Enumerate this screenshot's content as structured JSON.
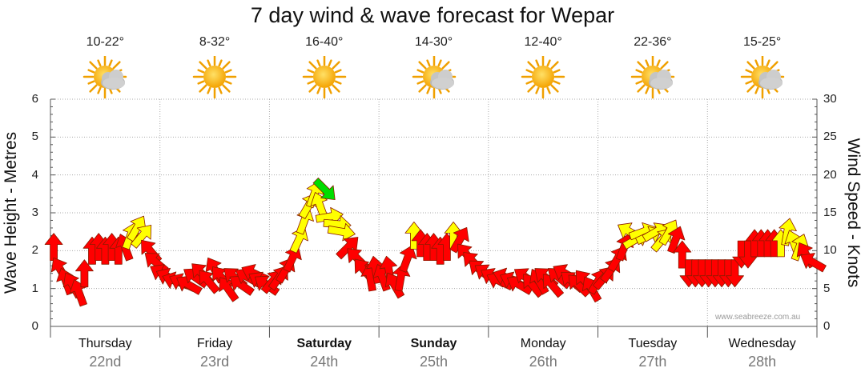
{
  "title": "7 day wind & wave forecast for Wepar",
  "watermark": "www.seabreeze.com.au",
  "days": [
    {
      "day": "Thursday",
      "date": "22nd",
      "temp": "10-22°",
      "weather": "partly-cloudy-icon",
      "bold": false
    },
    {
      "day": "Friday",
      "date": "23rd",
      "temp": "8-32°",
      "weather": "sunny-icon",
      "bold": false
    },
    {
      "day": "Saturday",
      "date": "24th",
      "temp": "16-40°",
      "weather": "sunny-icon",
      "bold": true
    },
    {
      "day": "Sunday",
      "date": "25th",
      "temp": "14-30°",
      "weather": "partly-cloudy-icon",
      "bold": true
    },
    {
      "day": "Monday",
      "date": "26th",
      "temp": "12-40°",
      "weather": "sunny-icon",
      "bold": false
    },
    {
      "day": "Tuesday",
      "date": "27th",
      "temp": "22-36°",
      "weather": "partly-cloudy-icon",
      "bold": false
    },
    {
      "day": "Wednesday",
      "date": "28th",
      "temp": "15-25°",
      "weather": "partly-cloudy-icon",
      "bold": false
    }
  ],
  "chart_data": {
    "type": "scatter",
    "title": "7 day wind & wave forecast for Wepar",
    "ylabel_left": "Wave Height - Metres",
    "ylabel_right": "Wind Speed - Knots",
    "y_left_range": [
      0,
      6
    ],
    "y_left_ticks": [
      "0",
      "1",
      "2",
      "3",
      "4",
      "5",
      "6"
    ],
    "y_right_range": [
      0,
      30
    ],
    "y_right_ticks": [
      "0",
      "5",
      "10",
      "15",
      "20",
      "25",
      "30"
    ],
    "x_range_days": [
      0,
      7
    ],
    "grid": true,
    "colors": {
      "light": "#ff0000",
      "moderate": "#ffff00",
      "strong": "#00dd00"
    },
    "series": [
      {
        "name": "Wind",
        "unit": "knots",
        "points": [
          {
            "day": 0.03,
            "knots": 10.5,
            "color": "light",
            "dir": 0
          },
          {
            "day": 0.09,
            "knots": 7.5,
            "color": "light",
            "dir": -30
          },
          {
            "day": 0.14,
            "knots": 6.0,
            "color": "light",
            "dir": -20
          },
          {
            "day": 0.2,
            "knots": 5.5,
            "color": "light",
            "dir": -30
          },
          {
            "day": 0.26,
            "knots": 4.5,
            "color": "light",
            "dir": -20
          },
          {
            "day": 0.31,
            "knots": 7.0,
            "color": "light",
            "dir": 0
          },
          {
            "day": 0.38,
            "knots": 10.0,
            "color": "light",
            "dir": 0
          },
          {
            "day": 0.44,
            "knots": 10.5,
            "color": "light",
            "dir": 0
          },
          {
            "day": 0.5,
            "knots": 10.0,
            "color": "light",
            "dir": 0
          },
          {
            "day": 0.56,
            "knots": 10.5,
            "color": "light",
            "dir": 0
          },
          {
            "day": 0.62,
            "knots": 10.0,
            "color": "light",
            "dir": 0
          },
          {
            "day": 0.68,
            "knots": 10.5,
            "color": "light",
            "dir": -20
          },
          {
            "day": 0.73,
            "knots": 12.0,
            "color": "moderate",
            "dir": 20
          },
          {
            "day": 0.79,
            "knots": 13.0,
            "color": "moderate",
            "dir": 30
          },
          {
            "day": 0.84,
            "knots": 12.0,
            "color": "moderate",
            "dir": 40
          },
          {
            "day": 0.91,
            "knots": 10.0,
            "color": "light",
            "dir": -40
          },
          {
            "day": 0.96,
            "knots": 8.5,
            "color": "light",
            "dir": -50
          },
          {
            "day": 1.02,
            "knots": 7.0,
            "color": "light",
            "dir": -60
          },
          {
            "day": 1.08,
            "knots": 6.5,
            "color": "light",
            "dir": -65
          },
          {
            "day": 1.14,
            "knots": 6.0,
            "color": "light",
            "dir": -70
          },
          {
            "day": 1.2,
            "knots": 5.8,
            "color": "light",
            "dir": -65
          },
          {
            "day": 1.26,
            "knots": 5.5,
            "color": "light",
            "dir": -60
          },
          {
            "day": 1.32,
            "knots": 6.5,
            "color": "light",
            "dir": -55
          },
          {
            "day": 1.38,
            "knots": 7.0,
            "color": "light",
            "dir": -45
          },
          {
            "day": 1.44,
            "knots": 6.0,
            "color": "light",
            "dir": -40
          },
          {
            "day": 1.5,
            "knots": 7.5,
            "color": "light",
            "dir": -30
          },
          {
            "day": 1.56,
            "knots": 6.5,
            "color": "light",
            "dir": -40
          },
          {
            "day": 1.62,
            "knots": 5.0,
            "color": "light",
            "dir": -35
          },
          {
            "day": 1.68,
            "knots": 6.5,
            "color": "light",
            "dir": -50
          },
          {
            "day": 1.74,
            "knots": 5.5,
            "color": "light",
            "dir": -55
          },
          {
            "day": 1.8,
            "knots": 6.5,
            "color": "light",
            "dir": -60
          },
          {
            "day": 1.86,
            "knots": 7.0,
            "color": "light",
            "dir": -65
          },
          {
            "day": 1.92,
            "knots": 6.0,
            "color": "light",
            "dir": -60
          },
          {
            "day": 1.97,
            "knots": 5.5,
            "color": "light",
            "dir": -55
          },
          {
            "day": 2.03,
            "knots": 6.0,
            "color": "light",
            "dir": 40
          },
          {
            "day": 2.09,
            "knots": 6.5,
            "color": "light",
            "dir": 35
          },
          {
            "day": 2.15,
            "knots": 7.5,
            "color": "light",
            "dir": 30
          },
          {
            "day": 2.21,
            "knots": 9.0,
            "color": "light",
            "dir": 25
          },
          {
            "day": 2.27,
            "knots": 11.5,
            "color": "moderate",
            "dir": 25
          },
          {
            "day": 2.32,
            "knots": 14.0,
            "color": "moderate",
            "dir": 20
          },
          {
            "day": 2.36,
            "knots": 16.0,
            "color": "moderate",
            "dir": 30
          },
          {
            "day": 2.41,
            "knots": 17.5,
            "color": "moderate",
            "dir": 20
          },
          {
            "day": 2.46,
            "knots": 16.0,
            "color": "moderate",
            "dir": -20
          },
          {
            "day": 2.51,
            "knots": 18.0,
            "color": "strong",
            "dir": 135
          },
          {
            "day": 2.55,
            "knots": 14.5,
            "color": "moderate",
            "dir": 80
          },
          {
            "day": 2.62,
            "knots": 13.5,
            "color": "moderate",
            "dir": 95
          },
          {
            "day": 2.66,
            "knots": 12.5,
            "color": "moderate",
            "dir": 100
          },
          {
            "day": 2.72,
            "knots": 10.5,
            "color": "light",
            "dir": 45
          },
          {
            "day": 2.8,
            "knots": 9.0,
            "color": "light",
            "dir": -45
          },
          {
            "day": 2.86,
            "knots": 7.5,
            "color": "light",
            "dir": -40
          },
          {
            "day": 2.92,
            "knots": 6.5,
            "color": "light",
            "dir": -10
          },
          {
            "day": 2.97,
            "knots": 7.5,
            "color": "light",
            "dir": -10
          },
          {
            "day": 3.03,
            "knots": 6.5,
            "color": "light",
            "dir": -20
          },
          {
            "day": 3.09,
            "knots": 7.5,
            "color": "light",
            "dir": -10
          },
          {
            "day": 3.14,
            "knots": 5.5,
            "color": "light",
            "dir": -30
          },
          {
            "day": 3.2,
            "knots": 6.5,
            "color": "light",
            "dir": 10
          },
          {
            "day": 3.26,
            "knots": 9.0,
            "color": "light",
            "dir": 20
          },
          {
            "day": 3.32,
            "knots": 12.0,
            "color": "moderate",
            "dir": 0
          },
          {
            "day": 3.38,
            "knots": 11.0,
            "color": "light",
            "dir": 0
          },
          {
            "day": 3.44,
            "knots": 10.5,
            "color": "light",
            "dir": 0
          },
          {
            "day": 3.5,
            "knots": 10.5,
            "color": "light",
            "dir": 0
          },
          {
            "day": 3.56,
            "knots": 10.0,
            "color": "light",
            "dir": 0
          },
          {
            "day": 3.62,
            "knots": 10.5,
            "color": "light",
            "dir": 0
          },
          {
            "day": 3.68,
            "knots": 12.0,
            "color": "moderate",
            "dir": 0
          },
          {
            "day": 3.74,
            "knots": 11.5,
            "color": "light",
            "dir": 30
          },
          {
            "day": 3.8,
            "knots": 9.5,
            "color": "light",
            "dir": -40
          },
          {
            "day": 3.86,
            "knots": 8.5,
            "color": "light",
            "dir": -45
          },
          {
            "day": 3.92,
            "knots": 7.5,
            "color": "light",
            "dir": -50
          },
          {
            "day": 3.98,
            "knots": 7.0,
            "color": "light",
            "dir": -55
          },
          {
            "day": 4.04,
            "knots": 6.5,
            "color": "light",
            "dir": -60
          },
          {
            "day": 4.1,
            "knots": 6.0,
            "color": "light",
            "dir": -65
          },
          {
            "day": 4.16,
            "knots": 6.5,
            "color": "light",
            "dir": -70
          },
          {
            "day": 4.22,
            "knots": 6.0,
            "color": "light",
            "dir": -65
          },
          {
            "day": 4.28,
            "knots": 5.5,
            "color": "light",
            "dir": -60
          },
          {
            "day": 4.34,
            "knots": 6.5,
            "color": "light",
            "dir": -55
          },
          {
            "day": 4.4,
            "knots": 5.5,
            "color": "light",
            "dir": -40
          },
          {
            "day": 4.46,
            "knots": 6.0,
            "color": "light",
            "dir": -30
          },
          {
            "day": 4.52,
            "knots": 6.5,
            "color": "light",
            "dir": -50
          },
          {
            "day": 4.58,
            "knots": 5.5,
            "color": "light",
            "dir": -40
          },
          {
            "day": 4.64,
            "knots": 6.5,
            "color": "light",
            "dir": -50
          },
          {
            "day": 4.7,
            "knots": 7.0,
            "color": "light",
            "dir": -60
          },
          {
            "day": 4.76,
            "knots": 6.0,
            "color": "light",
            "dir": -50
          },
          {
            "day": 4.82,
            "knots": 5.5,
            "color": "light",
            "dir": -45
          },
          {
            "day": 4.88,
            "knots": 6.0,
            "color": "light",
            "dir": -40
          },
          {
            "day": 4.94,
            "knots": 5.0,
            "color": "light",
            "dir": -30
          },
          {
            "day": 5.0,
            "knots": 6.0,
            "color": "light",
            "dir": 30
          },
          {
            "day": 5.06,
            "knots": 6.5,
            "color": "light",
            "dir": 40
          },
          {
            "day": 5.12,
            "knots": 7.5,
            "color": "light",
            "dir": 35
          },
          {
            "day": 5.18,
            "knots": 9.0,
            "color": "light",
            "dir": 30
          },
          {
            "day": 5.24,
            "knots": 10.5,
            "color": "light",
            "dir": 20
          },
          {
            "day": 5.29,
            "knots": 12.5,
            "color": "moderate",
            "dir": -60
          },
          {
            "day": 5.35,
            "knots": 11.5,
            "color": "moderate",
            "dir": 60
          },
          {
            "day": 5.41,
            "knots": 12.5,
            "color": "moderate",
            "dir": 70
          },
          {
            "day": 5.47,
            "knots": 12.0,
            "color": "moderate",
            "dir": 65
          },
          {
            "day": 5.53,
            "knots": 12.5,
            "color": "moderate",
            "dir": 60
          },
          {
            "day": 5.59,
            "knots": 11.5,
            "color": "moderate",
            "dir": 40
          },
          {
            "day": 5.65,
            "knots": 12.5,
            "color": "moderate",
            "dir": 30
          },
          {
            "day": 5.71,
            "knots": 11.5,
            "color": "light",
            "dir": 20
          },
          {
            "day": 5.77,
            "knots": 9.5,
            "color": "light",
            "dir": 0
          },
          {
            "day": 5.83,
            "knots": 7.0,
            "color": "light",
            "dir": 180
          },
          {
            "day": 5.89,
            "knots": 7.0,
            "color": "light",
            "dir": 180
          },
          {
            "day": 5.95,
            "knots": 7.0,
            "color": "light",
            "dir": 180
          },
          {
            "day": 6.01,
            "knots": 7.0,
            "color": "light",
            "dir": 180
          },
          {
            "day": 6.07,
            "knots": 7.0,
            "color": "light",
            "dir": 180
          },
          {
            "day": 6.13,
            "knots": 7.0,
            "color": "light",
            "dir": 180
          },
          {
            "day": 6.19,
            "knots": 7.0,
            "color": "light",
            "dir": 180
          },
          {
            "day": 6.25,
            "knots": 7.0,
            "color": "light",
            "dir": 180
          },
          {
            "day": 6.31,
            "knots": 9.5,
            "color": "light",
            "dir": 180
          },
          {
            "day": 6.37,
            "knots": 9.5,
            "color": "light",
            "dir": 180
          },
          {
            "day": 6.43,
            "knots": 11.0,
            "color": "light",
            "dir": 0
          },
          {
            "day": 6.49,
            "knots": 11.0,
            "color": "light",
            "dir": 0
          },
          {
            "day": 6.55,
            "knots": 11.0,
            "color": "light",
            "dir": 0
          },
          {
            "day": 6.61,
            "knots": 11.0,
            "color": "light",
            "dir": 0
          },
          {
            "day": 6.67,
            "knots": 11.0,
            "color": "moderate",
            "dir": 0
          },
          {
            "day": 6.73,
            "knots": 12.5,
            "color": "moderate",
            "dir": 10
          },
          {
            "day": 6.79,
            "knots": 11.0,
            "color": "moderate",
            "dir": -20
          },
          {
            "day": 6.84,
            "knots": 10.5,
            "color": "moderate",
            "dir": 20
          },
          {
            "day": 6.9,
            "knots": 9.5,
            "color": "light",
            "dir": -30
          },
          {
            "day": 6.96,
            "knots": 8.5,
            "color": "light",
            "dir": -60
          }
        ]
      }
    ]
  }
}
